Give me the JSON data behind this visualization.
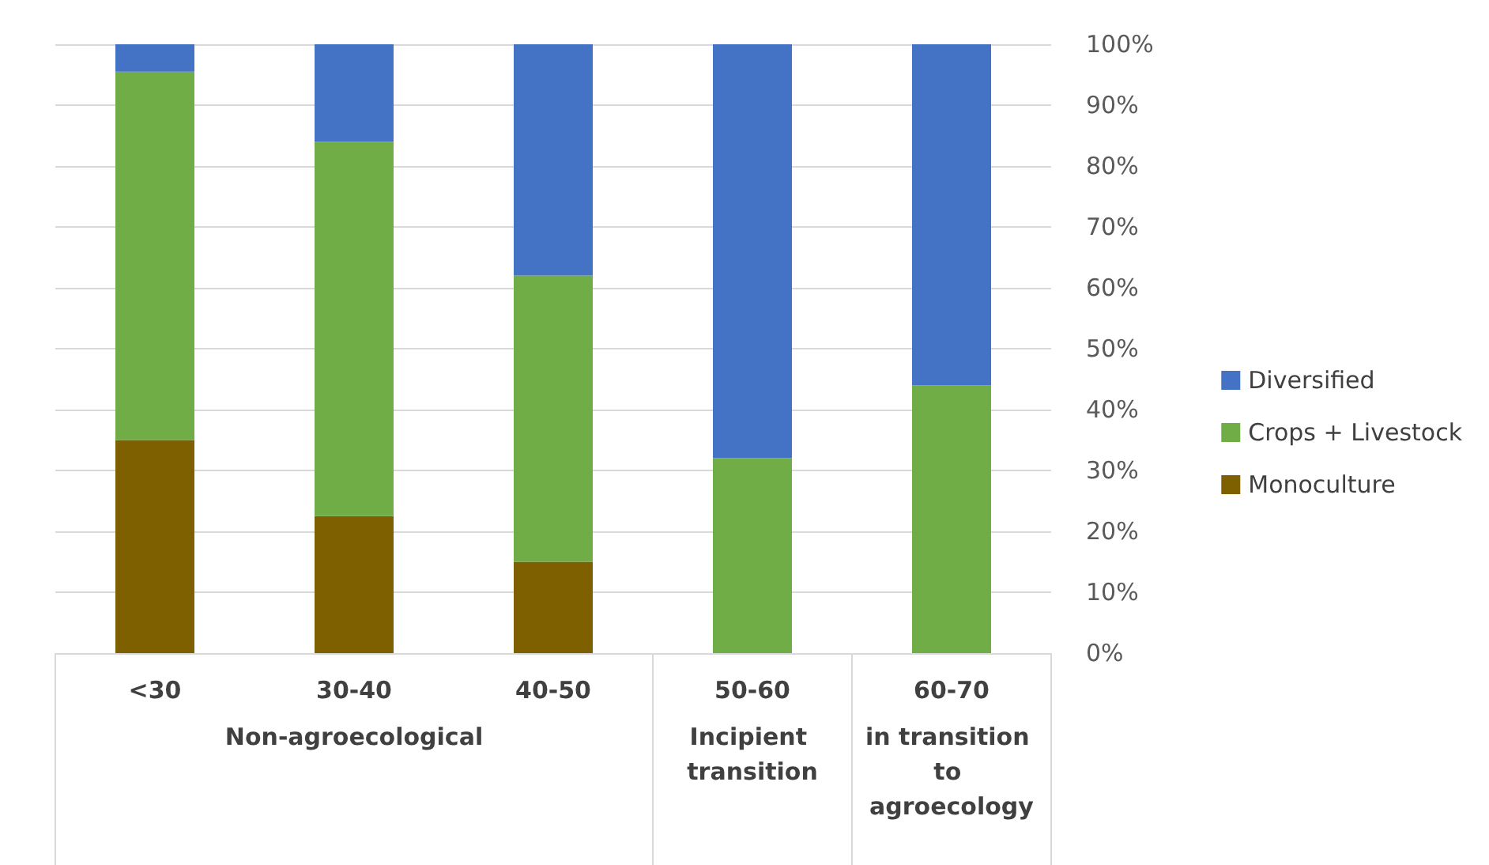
{
  "chart_data": {
    "type": "bar",
    "stacked": true,
    "categories": [
      "<30",
      "30-40",
      "40-50",
      "50-60",
      "60-70"
    ],
    "series": [
      {
        "name": "Monoculture",
        "color": "#7f6000",
        "values": [
          35,
          22.5,
          15,
          0,
          0
        ]
      },
      {
        "name": "Crops + Livestock",
        "color": "#70ad47",
        "values": [
          60.5,
          61.5,
          47,
          32,
          44
        ]
      },
      {
        "name": "Diversified",
        "color": "#4472c4",
        "values": [
          4.5,
          16,
          38,
          68,
          56
        ]
      }
    ],
    "ylim": [
      0,
      100
    ],
    "yticks": [
      {
        "value": 0,
        "label": "0%"
      },
      {
        "value": 10,
        "label": "10%"
      },
      {
        "value": 20,
        "label": "20%"
      },
      {
        "value": 30,
        "label": "30%"
      },
      {
        "value": 40,
        "label": "40%"
      },
      {
        "value": 50,
        "label": "50%"
      },
      {
        "value": 60,
        "label": "60%"
      },
      {
        "value": 70,
        "label": "70%"
      },
      {
        "value": 80,
        "label": "80%"
      },
      {
        "value": 90,
        "label": "90%"
      },
      {
        "value": 100,
        "label": "100%"
      }
    ],
    "annotations": [
      "Non-agroecological",
      "Incipient transition",
      "in transition to agroecology"
    ],
    "grid": "y",
    "legend": "right"
  }
}
